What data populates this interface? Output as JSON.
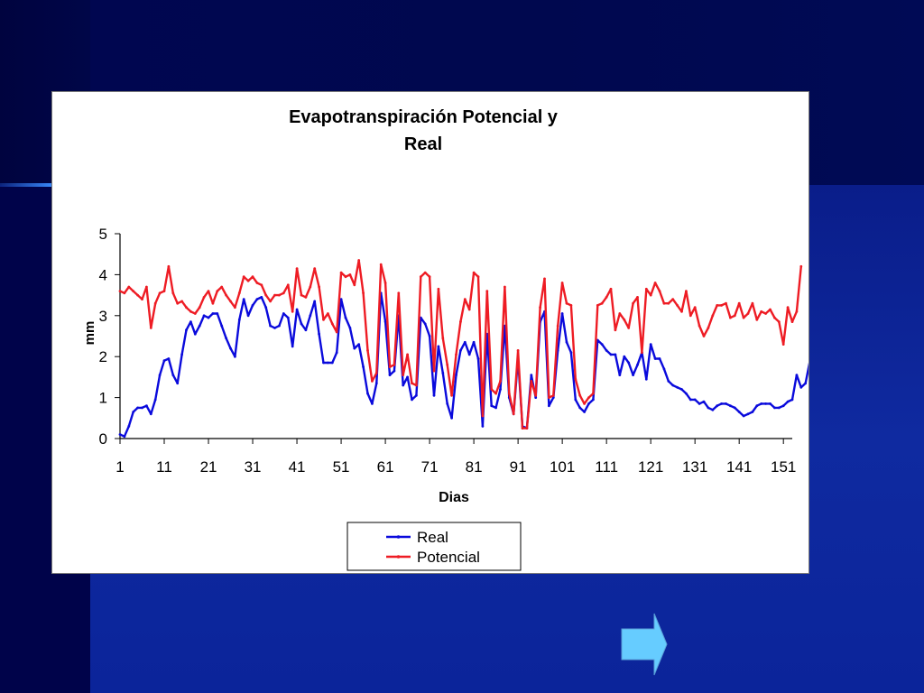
{
  "colors": {
    "real": "#0a0adc",
    "potencial": "#ee1c24",
    "arrow": "#66ccff"
  },
  "icons": {
    "next": "right-arrow-icon"
  },
  "chart_data": {
    "type": "line",
    "title_line1": "Evapotranspiración Potencial y",
    "title_line2": "Real",
    "xlabel": "Dias",
    "ylabel": "mm",
    "ylim": [
      0,
      5
    ],
    "yticks": [
      0,
      1,
      2,
      3,
      4,
      5
    ],
    "xticks": [
      1,
      11,
      21,
      31,
      41,
      51,
      61,
      71,
      81,
      91,
      101,
      111,
      121,
      131,
      141,
      151
    ],
    "xrange": [
      1,
      153
    ],
    "grid": false,
    "legend_position": "bottom-center",
    "x_start": 1,
    "series": [
      {
        "name": "Real",
        "values": [
          0.1,
          0.05,
          0.3,
          0.65,
          0.75,
          0.75,
          0.8,
          0.6,
          0.95,
          1.55,
          1.9,
          1.95,
          1.55,
          1.35,
          2.05,
          2.65,
          2.85,
          2.55,
          2.75,
          3.0,
          2.95,
          3.05,
          3.05,
          2.75,
          2.45,
          2.2,
          2.0,
          2.9,
          3.4,
          3.0,
          3.25,
          3.4,
          3.45,
          3.2,
          2.75,
          2.7,
          2.75,
          3.05,
          2.95,
          2.25,
          3.15,
          2.8,
          2.65,
          3.0,
          3.35,
          2.55,
          1.85,
          1.85,
          1.85,
          2.1,
          3.4,
          2.95,
          2.7,
          2.2,
          2.3,
          1.75,
          1.1,
          0.85,
          1.35,
          3.55,
          2.85,
          1.55,
          1.65,
          3.0,
          1.3,
          1.5,
          0.95,
          1.05,
          2.95,
          2.8,
          2.5,
          1.05,
          2.25,
          1.6,
          0.85,
          0.5,
          1.55,
          2.15,
          2.35,
          2.05,
          2.35,
          1.95,
          0.3,
          2.55,
          0.8,
          0.75,
          1.2,
          2.75,
          1.0,
          0.6,
          1.95,
          0.3,
          0.25,
          1.55,
          1.0,
          2.85,
          3.1,
          0.8,
          1.0,
          2.15,
          3.05,
          2.35,
          2.1,
          0.95,
          0.75,
          0.65,
          0.85,
          0.95,
          2.4,
          2.3,
          2.15,
          2.05,
          2.05,
          1.55,
          2.0,
          1.85,
          1.55,
          1.8,
          2.1,
          1.45,
          2.3,
          1.95,
          1.95,
          1.7,
          1.4,
          1.3,
          1.25,
          1.2,
          1.1,
          0.95,
          0.95,
          0.85,
          0.9,
          0.75,
          0.7,
          0.8,
          0.85,
          0.85,
          0.8,
          0.75,
          0.65,
          0.55,
          0.6,
          0.65,
          0.8,
          0.85,
          0.85,
          0.85,
          0.75,
          0.75,
          0.8,
          0.9,
          0.95,
          1.55,
          1.25,
          1.35,
          1.9
        ]
      },
      {
        "name": "Potencial",
        "values": [
          3.6,
          3.55,
          3.7,
          3.6,
          3.5,
          3.4,
          3.7,
          2.7,
          3.3,
          3.55,
          3.6,
          4.2,
          3.55,
          3.3,
          3.35,
          3.2,
          3.1,
          3.05,
          3.2,
          3.45,
          3.6,
          3.3,
          3.6,
          3.7,
          3.5,
          3.35,
          3.2,
          3.55,
          3.95,
          3.85,
          3.95,
          3.8,
          3.75,
          3.5,
          3.35,
          3.5,
          3.5,
          3.55,
          3.75,
          3.1,
          4.15,
          3.5,
          3.45,
          3.7,
          4.15,
          3.7,
          2.9,
          3.05,
          2.8,
          2.6,
          4.05,
          3.95,
          4.0,
          3.75,
          4.35,
          3.55,
          2.15,
          1.4,
          1.6,
          4.25,
          3.8,
          1.75,
          1.8,
          3.55,
          1.55,
          2.05,
          1.35,
          1.3,
          3.95,
          4.05,
          3.95,
          1.65,
          3.65,
          2.45,
          1.8,
          1.05,
          2.05,
          2.85,
          3.4,
          3.15,
          4.05,
          3.95,
          0.55,
          3.6,
          1.2,
          1.1,
          1.4,
          3.7,
          1.1,
          0.6,
          2.15,
          0.25,
          0.25,
          1.4,
          1.05,
          3.2,
          3.9,
          1.0,
          1.05,
          2.75,
          3.8,
          3.3,
          3.25,
          1.45,
          1.05,
          0.85,
          1.0,
          1.1,
          3.25,
          3.3,
          3.45,
          3.65,
          2.65,
          3.05,
          2.9,
          2.7,
          3.3,
          3.45,
          2.1,
          3.65,
          3.5,
          3.8,
          3.6,
          3.3,
          3.3,
          3.4,
          3.25,
          3.1,
          3.6,
          3.0,
          3.2,
          2.75,
          2.5,
          2.7,
          3.0,
          3.25,
          3.25,
          3.3,
          2.95,
          3.0,
          3.3,
          2.95,
          3.05,
          3.3,
          2.9,
          3.1,
          3.05,
          3.15,
          2.95,
          2.85,
          2.3,
          3.2,
          2.85,
          3.1,
          4.2
        ]
      }
    ]
  }
}
